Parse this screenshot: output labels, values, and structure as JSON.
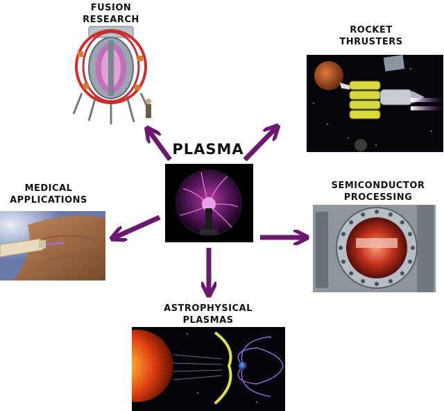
{
  "center": {
    "title": "PLASMA",
    "image": "plasma-globe"
  },
  "applications": [
    {
      "id": "fusion",
      "label": "FUSION\nRESEARCH",
      "image": "tokamak-reactor"
    },
    {
      "id": "rocket",
      "label": "ROCKET\nTHRUSTERS",
      "image": "spacecraft-thrusters"
    },
    {
      "id": "medical",
      "label": "MEDICAL\nAPPLICATIONS",
      "image": "plasma-pen-on-hand"
    },
    {
      "id": "semiconductor",
      "label": "SEMICONDUCTOR\nPROCESSING",
      "image": "vacuum-chamber-window"
    },
    {
      "id": "astro",
      "label": "ASTROPHYSICAL\nPLASMAS",
      "image": "sun-and-magnetosphere"
    }
  ],
  "colors": {
    "arrow": "#6a1a6e",
    "text": "#111111"
  }
}
